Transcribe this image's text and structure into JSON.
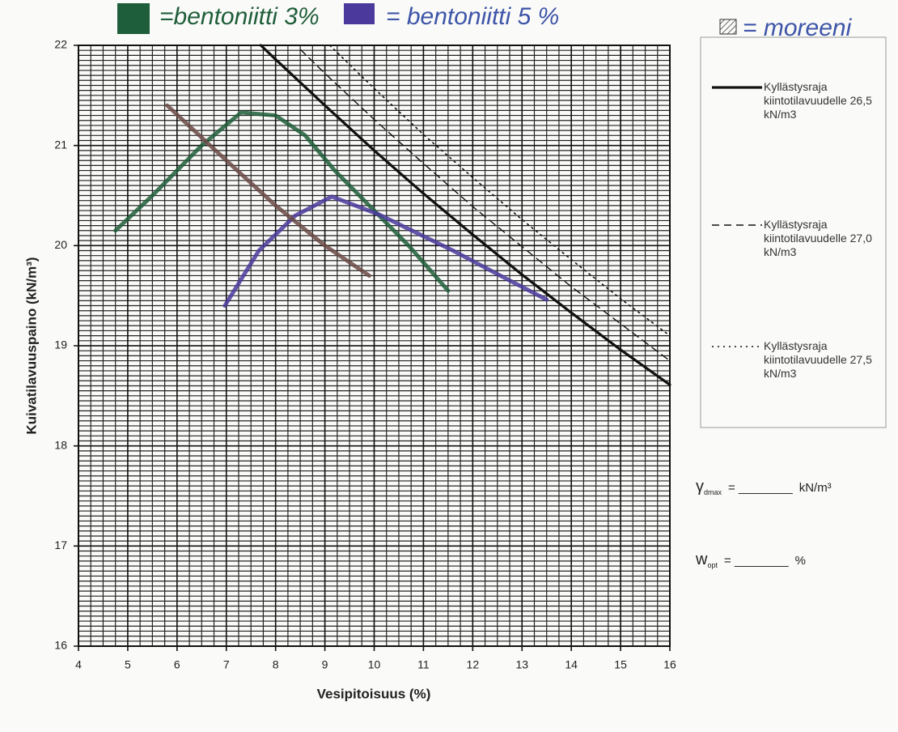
{
  "chart_data": {
    "type": "line",
    "x_label": "Vesipitoisuus (%)",
    "y_label": "Kuivatilavuuspaino (kN/m³)",
    "xlim": [
      4,
      16
    ],
    "ylim": [
      16,
      22
    ],
    "xticks": [
      4,
      5,
      6,
      7,
      8,
      9,
      10,
      11,
      12,
      13,
      14,
      15,
      16
    ],
    "yticks": [
      16,
      17,
      18,
      19,
      20,
      21,
      22
    ],
    "grid": true,
    "minor_grid_step": {
      "x": 0.25,
      "y": 0.05
    },
    "series": [
      {
        "name": "Kyllästysraja kiintotilavuudelle 26,5 kN/m3",
        "color": "#111111",
        "style": "solid",
        "x": [
          7.7,
          8,
          9,
          10,
          11,
          12,
          13,
          14,
          15,
          16
        ],
        "values": [
          22.0,
          21.86,
          21.4,
          20.95,
          20.52,
          20.11,
          19.71,
          19.33,
          18.96,
          18.61
        ]
      },
      {
        "name": "Kyllästysraja kiintotilavuudelle 27,0 kN/m3",
        "color": "#111111",
        "style": "dashed",
        "x": [
          8.5,
          9,
          10,
          11,
          12,
          13,
          14,
          15,
          16
        ],
        "values": [
          21.96,
          21.72,
          21.26,
          20.82,
          20.39,
          19.99,
          19.59,
          19.22,
          18.85
        ]
      },
      {
        "name": "Kyllästysraja kiintotilavuudelle 27,5 kN/m3",
        "color": "#111111",
        "style": "dotted",
        "x": [
          9.1,
          10,
          11,
          12,
          13,
          14,
          15,
          16
        ],
        "values": [
          22.0,
          21.57,
          21.11,
          20.68,
          20.26,
          19.86,
          19.47,
          19.1
        ]
      },
      {
        "name": "=bentoniitti 3%",
        "color": "#1f5e3a",
        "style": "marker",
        "x": [
          4.75,
          5.5,
          6.5,
          7.3,
          8,
          8.6,
          9.2,
          10,
          10.7,
          11.5
        ],
        "values": [
          20.15,
          20.5,
          21.0,
          21.33,
          21.3,
          21.1,
          20.75,
          20.35,
          20.0,
          19.55
        ]
      },
      {
        "name": "= bentoniitti 5 %",
        "color": "#4b3a9c",
        "style": "marker",
        "x": [
          6.97,
          7.66,
          8.4,
          9.14,
          10.1,
          11.6,
          12.6,
          13.5
        ],
        "values": [
          19.4,
          19.95,
          20.3,
          20.49,
          20.31,
          19.95,
          19.69,
          19.46
        ]
      },
      {
        "name": "= moreeni",
        "color": "#6b4a46",
        "style": "marker",
        "x": [
          5.8,
          7,
          8,
          9,
          9.9
        ],
        "values": [
          21.4,
          20.85,
          20.4,
          20.0,
          19.7
        ]
      }
    ]
  },
  "formulas": {
    "gamma": {
      "symbol": "γ",
      "subscript": "dmax",
      "blank": "= ________",
      "unit": "kN/m³"
    },
    "w": {
      "symbol": "w",
      "subscript": "opt",
      "blank": "= ________",
      "unit": "%"
    }
  }
}
